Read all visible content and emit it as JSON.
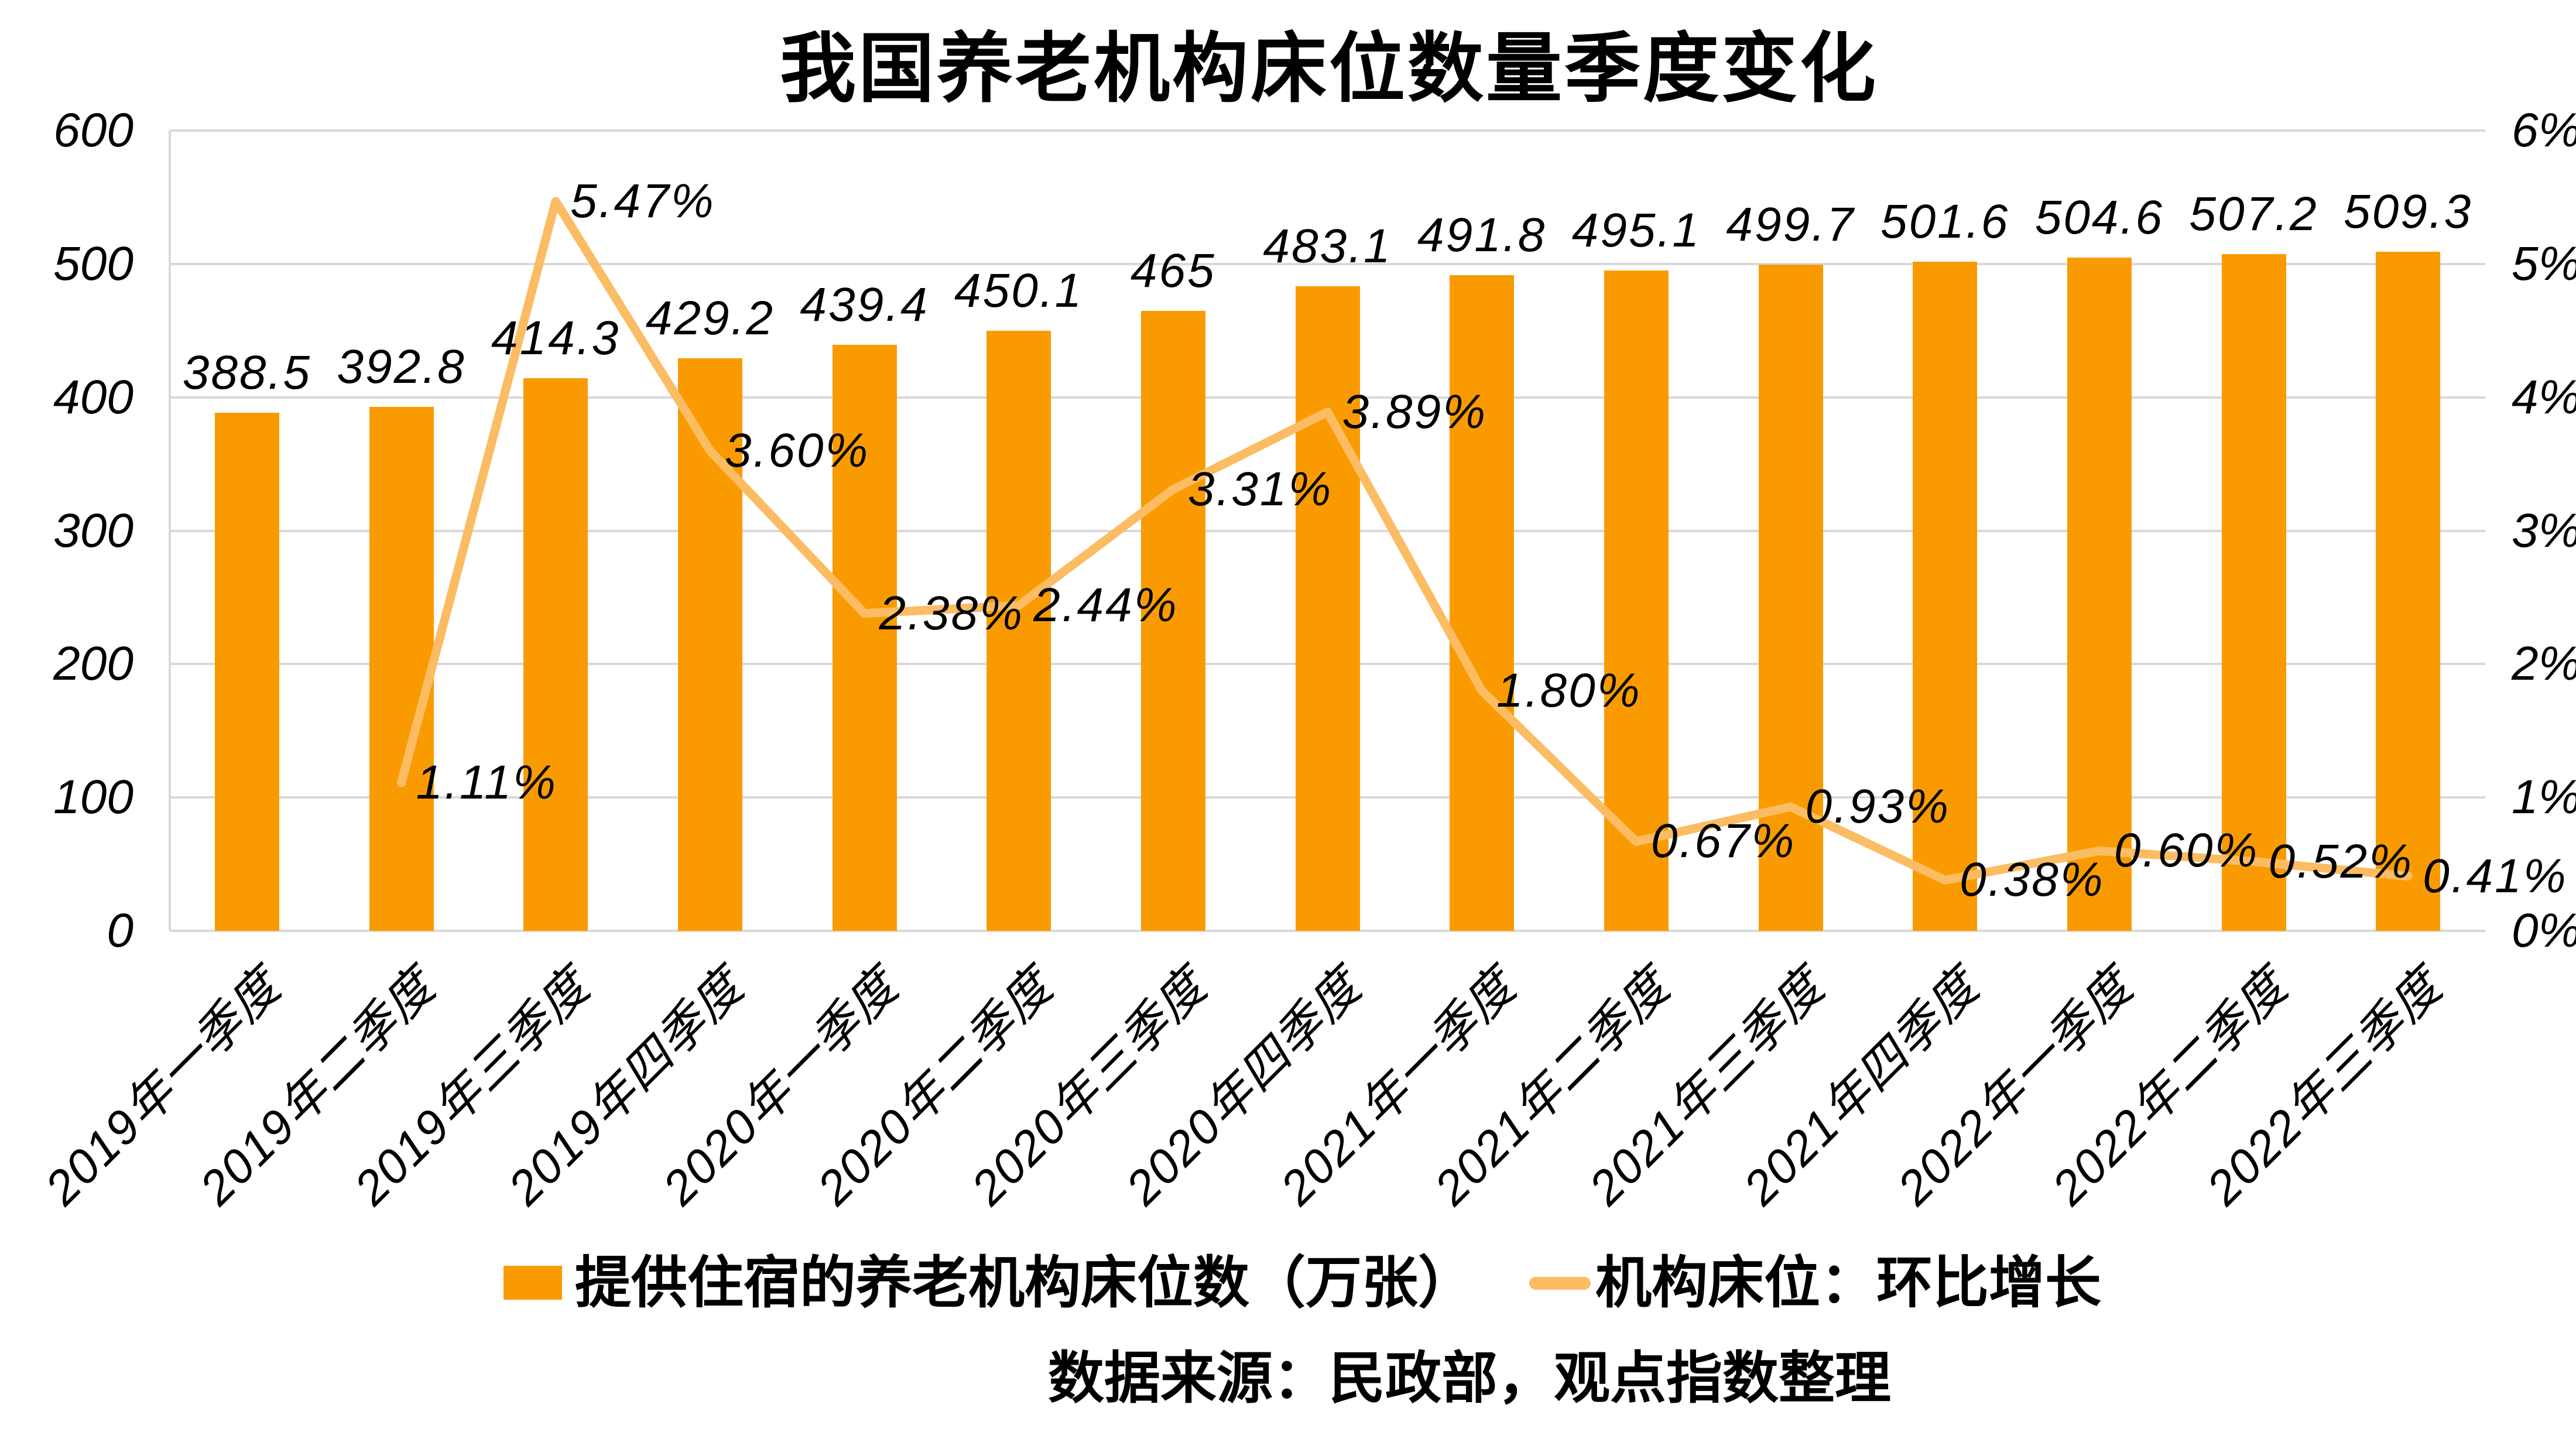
{
  "title": "我国养老机构床位数量季度变化",
  "source_note": "数据来源：民政部，观点指数整理",
  "legend": {
    "bar_label": "提供住宿的养老机构床位数（万张）",
    "line_label": "机构床位：环比增长"
  },
  "colors": {
    "bar": "#F99B00",
    "line": "#FBBC63",
    "grid": "#D9D9D9",
    "text": "#000000",
    "background": "#FFFFFF"
  },
  "chart_data": {
    "type": "bar",
    "subtype": "combo-bar-line",
    "title": "我国养老机构床位数量季度变化",
    "grid": true,
    "legend_position": "bottom",
    "categories": [
      "2019年一季度",
      "2019年二季度",
      "2019年三季度",
      "2019年四季度",
      "2020年一季度",
      "2020年二季度",
      "2020年三季度",
      "2020年四季度",
      "2021年一季度",
      "2021年二季度",
      "2021年三季度",
      "2021年四季度",
      "2022年一季度",
      "2022年二季度",
      "2022年三季度"
    ],
    "series": [
      {
        "name": "提供住宿的养老机构床位数（万张）",
        "type": "bar",
        "axis": "left",
        "values": [
          388.5,
          392.8,
          414.3,
          429.2,
          439.4,
          450.1,
          465,
          483.1,
          491.8,
          495.1,
          499.7,
          501.6,
          504.6,
          507.2,
          509.3
        ],
        "value_labels": [
          "388.5",
          "392.8",
          "414.3",
          "429.2",
          "439.4",
          "450.1",
          "465",
          "483.1",
          "491.8",
          "495.1",
          "499.7",
          "501.6",
          "504.6",
          "507.2",
          "509.3"
        ]
      },
      {
        "name": "机构床位：环比增长",
        "type": "line",
        "axis": "right",
        "values": [
          null,
          1.11,
          5.47,
          3.6,
          2.38,
          2.44,
          3.31,
          3.89,
          1.8,
          0.67,
          0.93,
          0.38,
          0.6,
          0.52,
          0.41
        ],
        "value_labels": [
          "",
          "1.11%",
          "5.47%",
          "3.60%",
          "2.38%",
          "2.44%",
          "3.31%",
          "3.89%",
          "1.80%",
          "0.67%",
          "0.93%",
          "0.38%",
          "0.60%",
          "0.52%",
          "0.41%"
        ]
      }
    ],
    "left_axis": {
      "min": 0,
      "max": 600,
      "step": 100,
      "tick_labels": [
        "0",
        "100",
        "200",
        "300",
        "400",
        "500",
        "600"
      ]
    },
    "right_axis": {
      "min": 0,
      "max": 6,
      "step": 1,
      "tick_labels": [
        "0%",
        "1%",
        "2%",
        "3%",
        "4%",
        "5%",
        "6%"
      ]
    }
  }
}
